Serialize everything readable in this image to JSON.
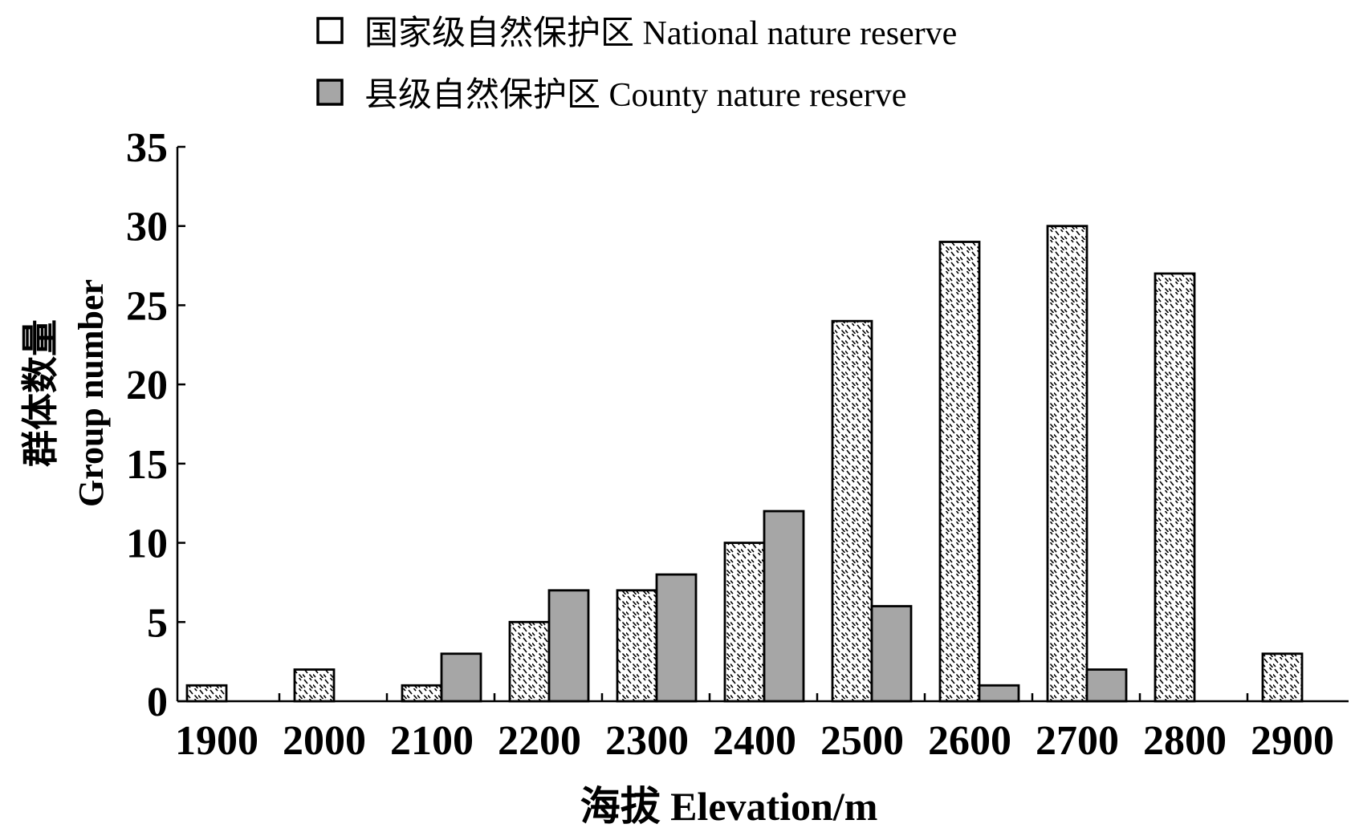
{
  "chart_data": {
    "type": "bar",
    "title": "",
    "xlabel": "海拔 Elevation/m",
    "ylabel_cn": "群体数量",
    "ylabel_en": "Group number",
    "categories": [
      "1900",
      "2000",
      "2100",
      "2200",
      "2300",
      "2400",
      "2500",
      "2600",
      "2700",
      "2800",
      "2900"
    ],
    "series": [
      {
        "name": "国家级自然保护区 National nature reserve",
        "values": [
          1,
          2,
          1,
          5,
          7,
          10,
          24,
          29,
          30,
          27,
          3
        ],
        "fill": "hatched-white"
      },
      {
        "name": "县级自然保护区 County nature reserve",
        "values": [
          0,
          0,
          3,
          7,
          8,
          12,
          6,
          1,
          2,
          0,
          0
        ],
        "fill": "#a6a6a6"
      }
    ],
    "ylim": [
      0,
      35
    ],
    "yticks": [
      0,
      5,
      10,
      15,
      20,
      25,
      30,
      35
    ],
    "legend_position": "top",
    "grid": false
  }
}
